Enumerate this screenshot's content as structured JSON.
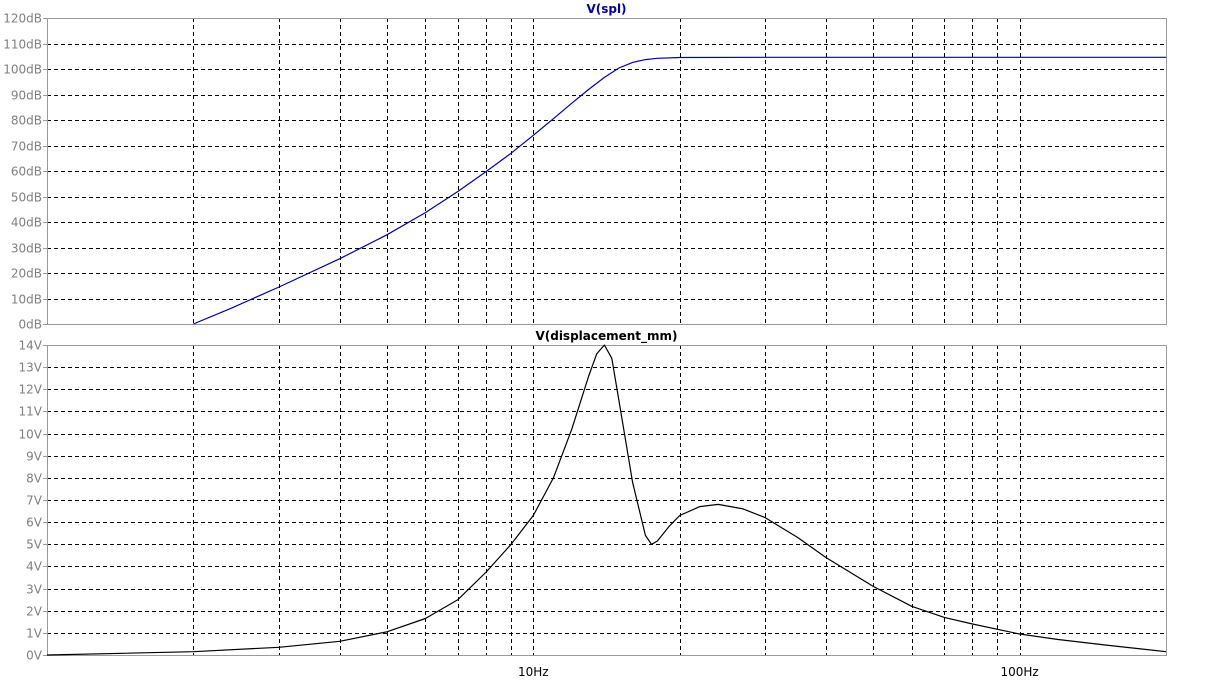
{
  "chart_data": [
    {
      "type": "line",
      "title": "V(spl)",
      "title_color": "#0000aa",
      "series_color": "#0000aa",
      "x_scale": "log",
      "xlim": [
        1,
        200
      ],
      "ylim": [
        0,
        120
      ],
      "y_tick_values": [
        0,
        10,
        20,
        30,
        40,
        50,
        60,
        70,
        80,
        90,
        100,
        110,
        120
      ],
      "y_tick_labels": [
        "0dB",
        "10dB",
        "20dB",
        "30dB",
        "40dB",
        "50dB",
        "60dB",
        "70dB",
        "80dB",
        "90dB",
        "100dB",
        "110dB",
        "120dB"
      ],
      "grid": true,
      "series": [
        {
          "x": [
            2.0,
            2.4,
            3.0,
            4.0,
            5.0,
            6.0,
            7.0,
            8.0,
            9.0,
            10.0,
            11.0,
            12.0,
            13.0,
            14.0,
            15.0,
            16.0,
            17.0,
            18.0,
            20.0,
            30.0,
            50.0,
            100.0,
            200.0
          ],
          "y": [
            0,
            6.3,
            14.5,
            25.6,
            35.0,
            43.7,
            52.0,
            59.8,
            67.0,
            74.0,
            80.5,
            86.6,
            92.0,
            96.7,
            100.4,
            102.6,
            103.7,
            104.2,
            104.5,
            104.6,
            104.6,
            104.6,
            104.6
          ]
        }
      ]
    },
    {
      "type": "line",
      "title": "V(displacement_mm)",
      "title_color": "#000000",
      "series_color": "#000000",
      "x_scale": "log",
      "xlim": [
        1,
        200
      ],
      "ylim": [
        0,
        14
      ],
      "y_tick_values": [
        0,
        1,
        2,
        3,
        4,
        5,
        6,
        7,
        8,
        9,
        10,
        11,
        12,
        13,
        14
      ],
      "y_tick_labels": [
        "0V",
        "1V",
        "2V",
        "3V",
        "4V",
        "5V",
        "6V",
        "7V",
        "8V",
        "9V",
        "10V",
        "11V",
        "12V",
        "13V",
        "14V"
      ],
      "x_tick_values": [
        10,
        100
      ],
      "x_tick_labels": [
        "10Hz",
        "100Hz"
      ],
      "grid": true,
      "series": [
        {
          "x": [
            1.0,
            2.0,
            3.0,
            4.0,
            5.0,
            6.0,
            7.0,
            8.0,
            9.0,
            10.0,
            11.0,
            12.0,
            13.0,
            13.5,
            14.0,
            14.5,
            15.0,
            16.0,
            17.0,
            17.5,
            18.0,
            19.0,
            20.0,
            22.0,
            24.0,
            27.0,
            30.0,
            35.0,
            40.0,
            50.0,
            60.0,
            70.0,
            80.0,
            100.0,
            120.0,
            150.0,
            200.0
          ],
          "y": [
            0.0,
            0.15,
            0.35,
            0.62,
            1.05,
            1.65,
            2.5,
            3.75,
            5.0,
            6.3,
            8.0,
            10.2,
            12.6,
            13.6,
            14.0,
            13.4,
            11.5,
            7.8,
            5.4,
            5.0,
            5.15,
            5.8,
            6.3,
            6.7,
            6.8,
            6.6,
            6.2,
            5.3,
            4.4,
            3.1,
            2.2,
            1.7,
            1.4,
            0.95,
            0.7,
            0.45,
            0.15
          ]
        }
      ]
    }
  ]
}
